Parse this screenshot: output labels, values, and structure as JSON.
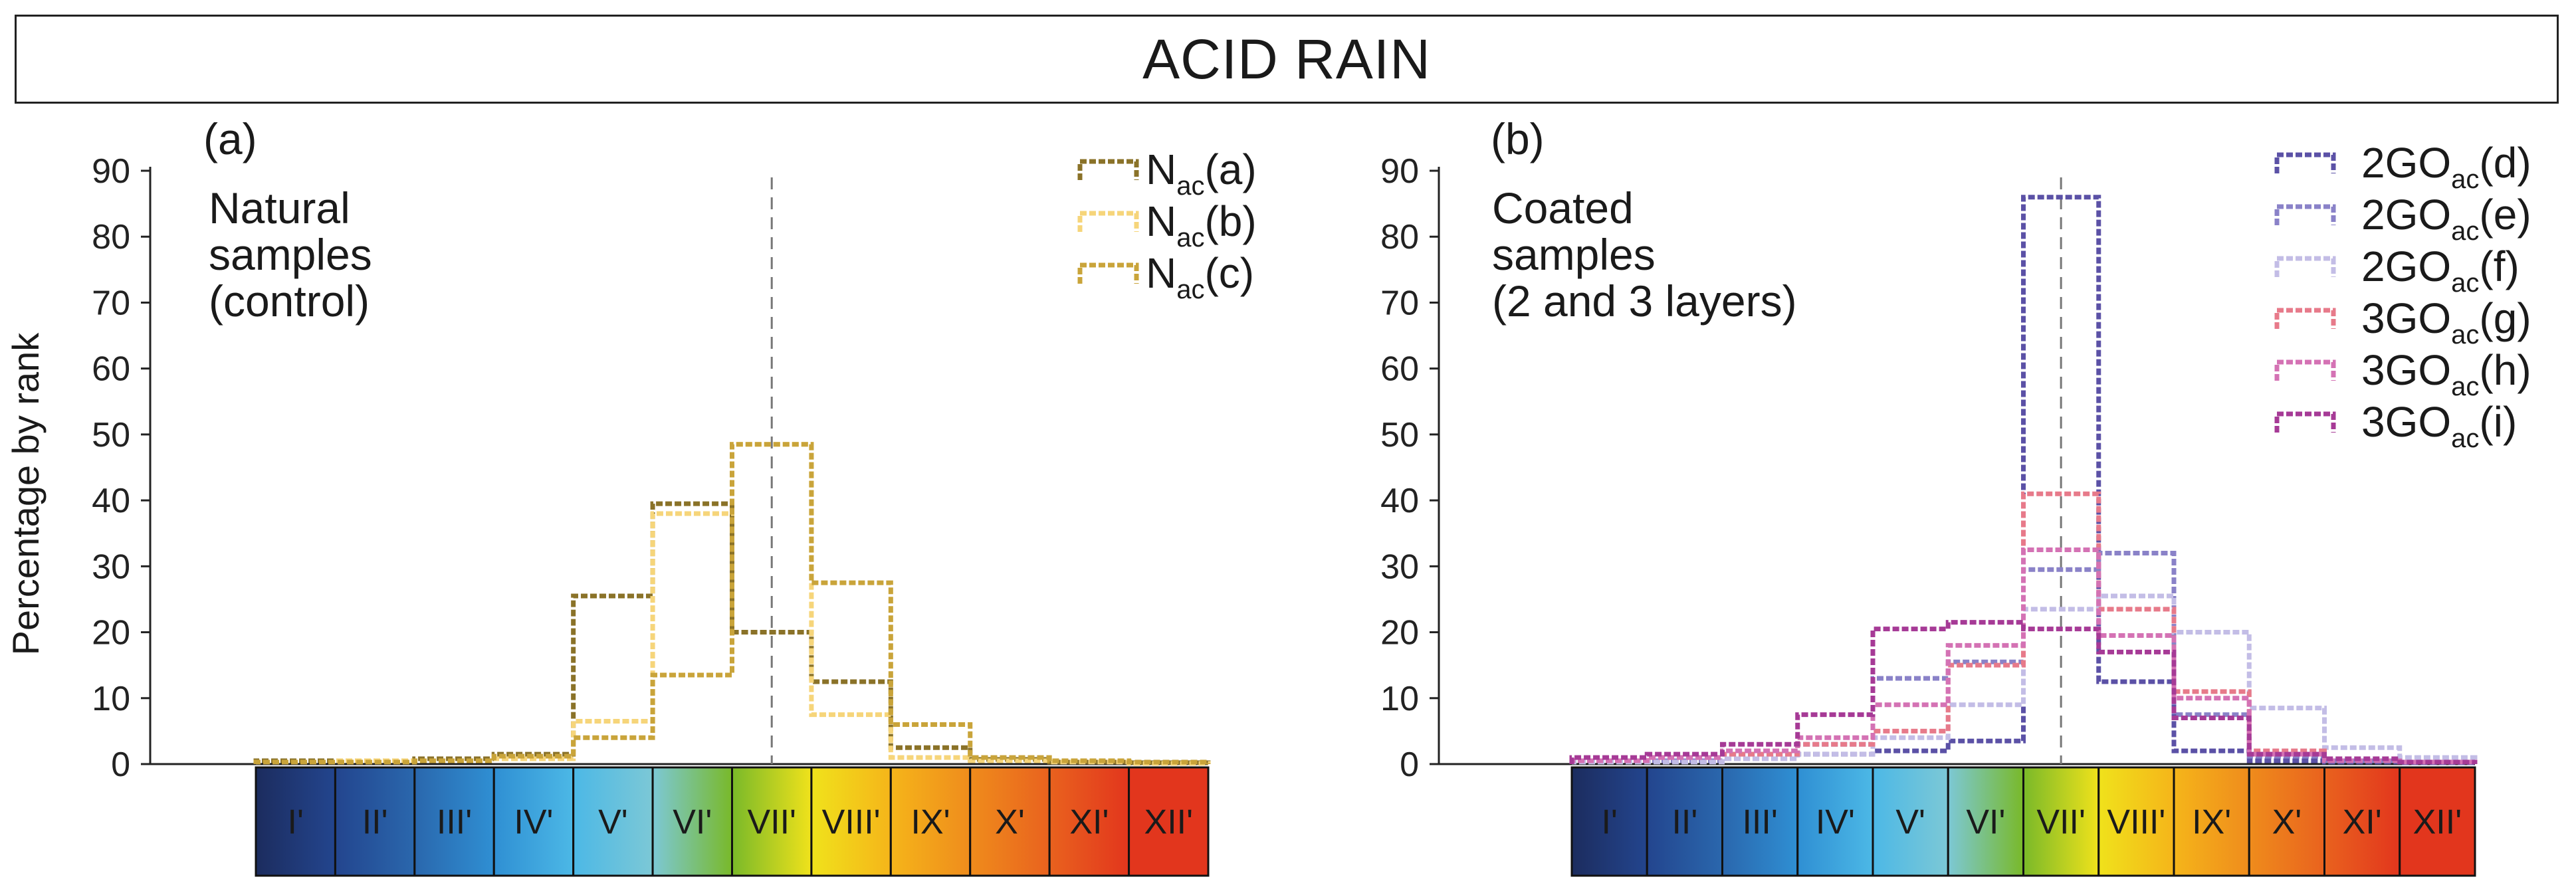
{
  "title": "ACID RAIN",
  "colors": {
    "Na": "#8a7228",
    "Nb": "#f6d57a",
    "Nc": "#c9a43a",
    "G2d": "#5b51a6",
    "G2e": "#8a82c8",
    "G2f": "#c3bde6",
    "G3g": "#e77a8a",
    "G3h": "#d472b4",
    "G3i": "#a63a96"
  },
  "rank_colors": [
    "#1c2c5e",
    "#23458e",
    "#2a67ad",
    "#2f8fd3",
    "#4cb8e6",
    "#7cc8d6",
    "#79b929",
    "#f0e21b",
    "#f5b51a",
    "#ef8c1c",
    "#e9621e",
    "#e2361d"
  ],
  "chart_data": [
    {
      "type": "step",
      "panel_label": "(a)",
      "annotation": [
        "Natural",
        "samples",
        "(control)"
      ],
      "ylabel": "Percentage by rank",
      "ylim": [
        0,
        90
      ],
      "yticks": [
        "0",
        "10",
        "20",
        "30",
        "40",
        "50",
        "60",
        "70",
        "80",
        "90"
      ],
      "categories": [
        "I'",
        "II'",
        "III'",
        "IV'",
        "V'",
        "VI'",
        "VII'",
        "VIII'",
        "IX'",
        "X'",
        "XI'",
        "XII'"
      ],
      "reference_category": 6,
      "series": [
        {
          "main": "N",
          "sub": "ac",
          "suffix": "(a)",
          "color_key": "Na",
          "values": [
            0.5,
            0.5,
            0.8,
            1.5,
            25.5,
            39.5,
            20,
            12.5,
            2.5,
            0.7,
            0.3,
            0.2
          ]
        },
        {
          "main": "N",
          "sub": "ac",
          "suffix": "(b)",
          "color_key": "Nb",
          "values": [
            0.3,
            0.5,
            0.5,
            0.8,
            6.5,
            38,
            48.5,
            7.5,
            1.0,
            0.5,
            0.3,
            0.1
          ]
        },
        {
          "main": "N",
          "sub": "ac",
          "suffix": "(c)",
          "color_key": "Nc",
          "values": [
            0.3,
            0.3,
            0.5,
            1.2,
            4,
            13.5,
            48.5,
            27.5,
            6,
            1,
            0.5,
            0.3
          ]
        }
      ]
    },
    {
      "type": "step",
      "panel_label": "(b)",
      "annotation": [
        "Coated",
        "samples",
        "(2 and 3 layers)"
      ],
      "ylabel": "",
      "ylim": [
        0,
        90
      ],
      "yticks": [
        "0",
        "10",
        "20",
        "30",
        "40",
        "50",
        "60",
        "70",
        "80",
        "90"
      ],
      "categories": [
        "I'",
        "II'",
        "III'",
        "IV'",
        "V'",
        "VI'",
        "VII'",
        "VIII'",
        "IX'",
        "X'",
        "XI'",
        "XII'"
      ],
      "reference_category": 6,
      "series": [
        {
          "main": "2GO",
          "sub": "ac",
          "suffix": "(d)",
          "color_key": "G2d",
          "values": [
            0.5,
            0.5,
            0.8,
            1.5,
            2,
            3.5,
            86,
            12.5,
            2,
            0.5,
            0.3,
            0.2
          ]
        },
        {
          "main": "2GO",
          "sub": "ac",
          "suffix": "(e)",
          "color_key": "G2e",
          "values": [
            0.5,
            0.5,
            1.5,
            3,
            13,
            15.5,
            29.5,
            32,
            7.5,
            1.2,
            0.5,
            0.3
          ]
        },
        {
          "main": "2GO",
          "sub": "ac",
          "suffix": "(f)",
          "color_key": "G2f",
          "values": [
            0.3,
            0.3,
            0.8,
            1.5,
            4,
            9,
            23.5,
            25.5,
            20,
            8.5,
            2.5,
            1
          ]
        },
        {
          "main": "3GO",
          "sub": "ac",
          "suffix": "(g)",
          "color_key": "G3g",
          "values": [
            0.5,
            1,
            1.5,
            3,
            5,
            15,
            41,
            23.5,
            11,
            2,
            0.5,
            0.3
          ]
        },
        {
          "main": "3GO",
          "sub": "ac",
          "suffix": "(h)",
          "color_key": "G3h",
          "values": [
            0.5,
            1,
            2,
            4,
            9,
            18,
            32.5,
            19.5,
            10,
            1.5,
            0.5,
            0.3
          ]
        },
        {
          "main": "3GO",
          "sub": "ac",
          "suffix": "(i)",
          "color_key": "G3i",
          "values": [
            1,
            1.5,
            3,
            7.5,
            20.5,
            21.5,
            20.5,
            17,
            7,
            1.5,
            0.8,
            0.3
          ]
        }
      ]
    }
  ]
}
